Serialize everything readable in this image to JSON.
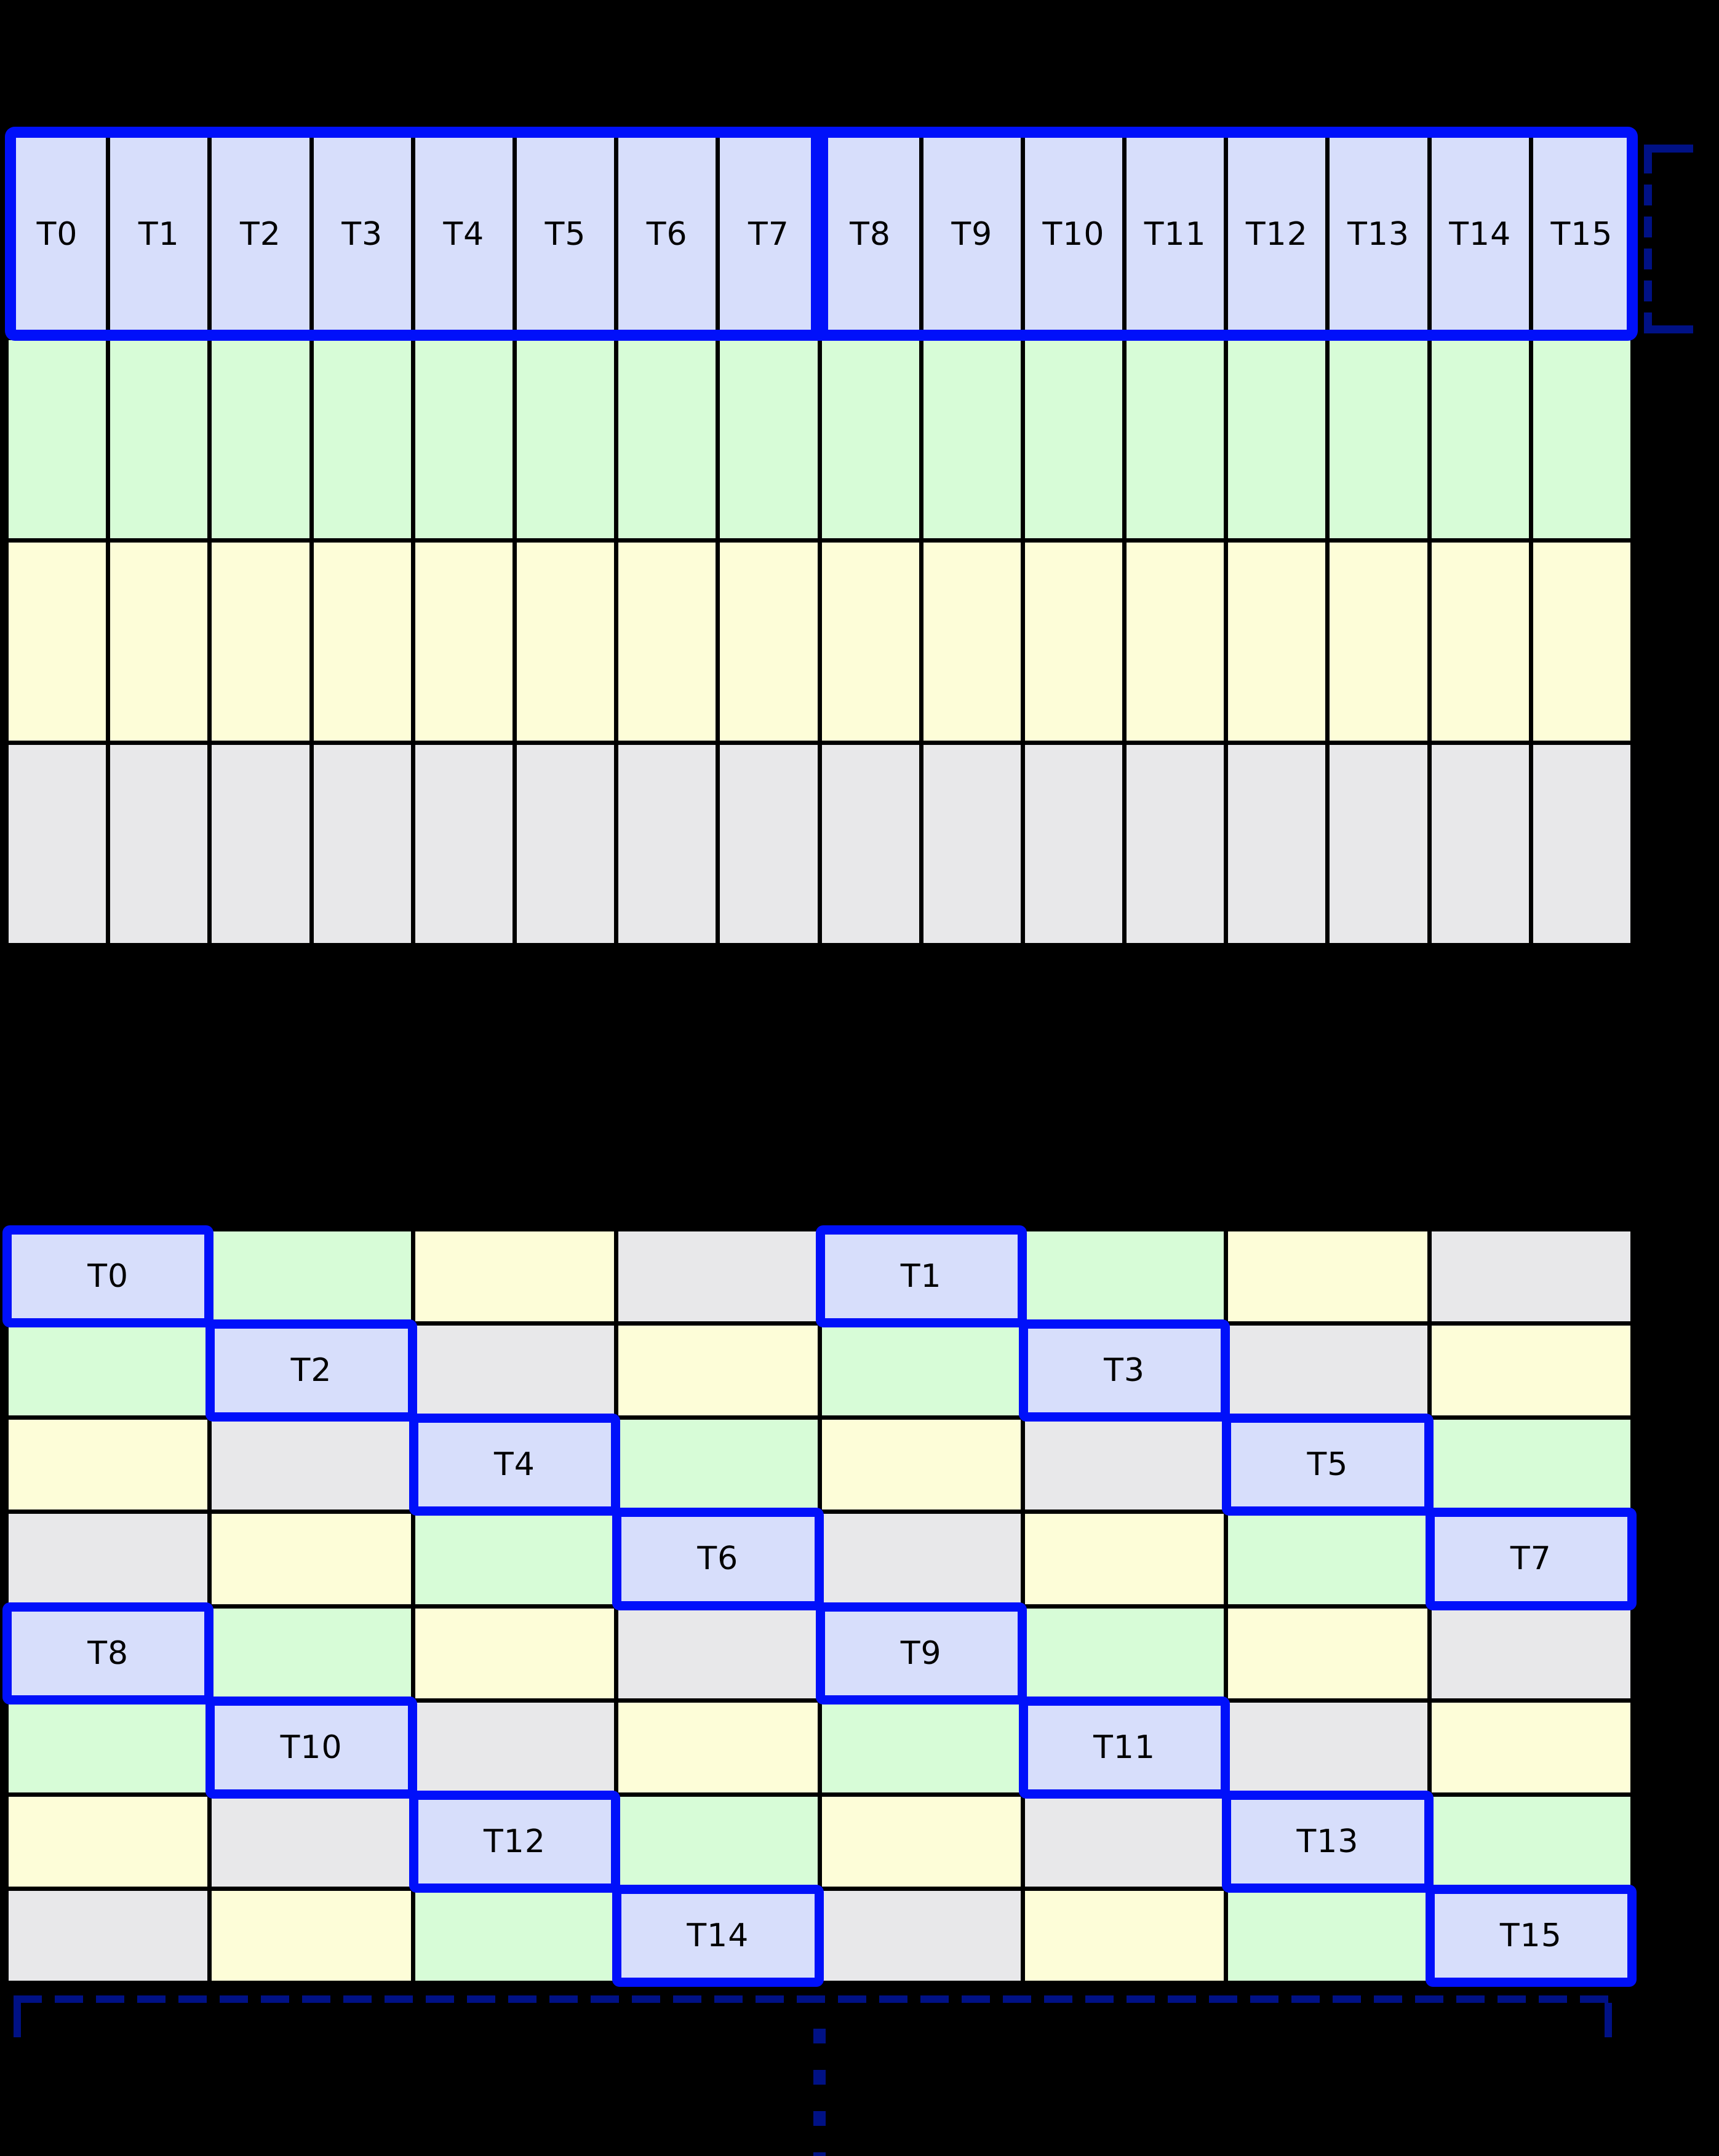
{
  "colors": {
    "lavender": "#d7defb",
    "green": "#d7fcd7",
    "yellow": "#fdfdd8",
    "gray": "#e8e8ea",
    "blue": "#0010fa",
    "bracket": "#001185",
    "grid_line": "#000000",
    "background": "#000000",
    "label_text": "#000000"
  },
  "top_grid": {
    "columns": 16,
    "rows": 4,
    "row_colors": [
      "lavender",
      "green",
      "yellow",
      "gray"
    ],
    "thread_labels": [
      "T0",
      "T1",
      "T2",
      "T3",
      "T4",
      "T5",
      "T6",
      "T7",
      "T8",
      "T9",
      "T10",
      "T11",
      "T12",
      "T13",
      "T14",
      "T15"
    ],
    "warp_group_split_after": "T7"
  },
  "bottom_grid": {
    "columns": 8,
    "rows": 8,
    "cells": [
      [
        {
          "color": "lavender",
          "label": "T0"
        },
        {
          "color": "green"
        },
        {
          "color": "yellow"
        },
        {
          "color": "gray"
        },
        {
          "color": "lavender",
          "label": "T1"
        },
        {
          "color": "green"
        },
        {
          "color": "yellow"
        },
        {
          "color": "gray"
        }
      ],
      [
        {
          "color": "green"
        },
        {
          "color": "lavender",
          "label": "T2"
        },
        {
          "color": "gray"
        },
        {
          "color": "yellow"
        },
        {
          "color": "green"
        },
        {
          "color": "lavender",
          "label": "T3"
        },
        {
          "color": "gray"
        },
        {
          "color": "yellow"
        }
      ],
      [
        {
          "color": "yellow"
        },
        {
          "color": "gray"
        },
        {
          "color": "lavender",
          "label": "T4"
        },
        {
          "color": "green"
        },
        {
          "color": "yellow"
        },
        {
          "color": "gray"
        },
        {
          "color": "lavender",
          "label": "T5"
        },
        {
          "color": "green"
        }
      ],
      [
        {
          "color": "gray"
        },
        {
          "color": "yellow"
        },
        {
          "color": "green"
        },
        {
          "color": "lavender",
          "label": "T6"
        },
        {
          "color": "gray"
        },
        {
          "color": "yellow"
        },
        {
          "color": "green"
        },
        {
          "color": "lavender",
          "label": "T7"
        }
      ],
      [
        {
          "color": "lavender",
          "label": "T8"
        },
        {
          "color": "green"
        },
        {
          "color": "yellow"
        },
        {
          "color": "gray"
        },
        {
          "color": "lavender",
          "label": "T9"
        },
        {
          "color": "green"
        },
        {
          "color": "yellow"
        },
        {
          "color": "gray"
        }
      ],
      [
        {
          "color": "green"
        },
        {
          "color": "lavender",
          "label": "T10"
        },
        {
          "color": "gray"
        },
        {
          "color": "yellow"
        },
        {
          "color": "green"
        },
        {
          "color": "lavender",
          "label": "T11"
        },
        {
          "color": "gray"
        },
        {
          "color": "yellow"
        }
      ],
      [
        {
          "color": "yellow"
        },
        {
          "color": "gray"
        },
        {
          "color": "lavender",
          "label": "T12"
        },
        {
          "color": "green"
        },
        {
          "color": "yellow"
        },
        {
          "color": "gray"
        },
        {
          "color": "lavender",
          "label": "T13"
        },
        {
          "color": "green"
        }
      ],
      [
        {
          "color": "gray"
        },
        {
          "color": "yellow"
        },
        {
          "color": "green"
        },
        {
          "color": "lavender",
          "label": "T14"
        },
        {
          "color": "gray"
        },
        {
          "color": "yellow"
        },
        {
          "color": "green"
        },
        {
          "color": "lavender",
          "label": "T15"
        }
      ]
    ]
  }
}
